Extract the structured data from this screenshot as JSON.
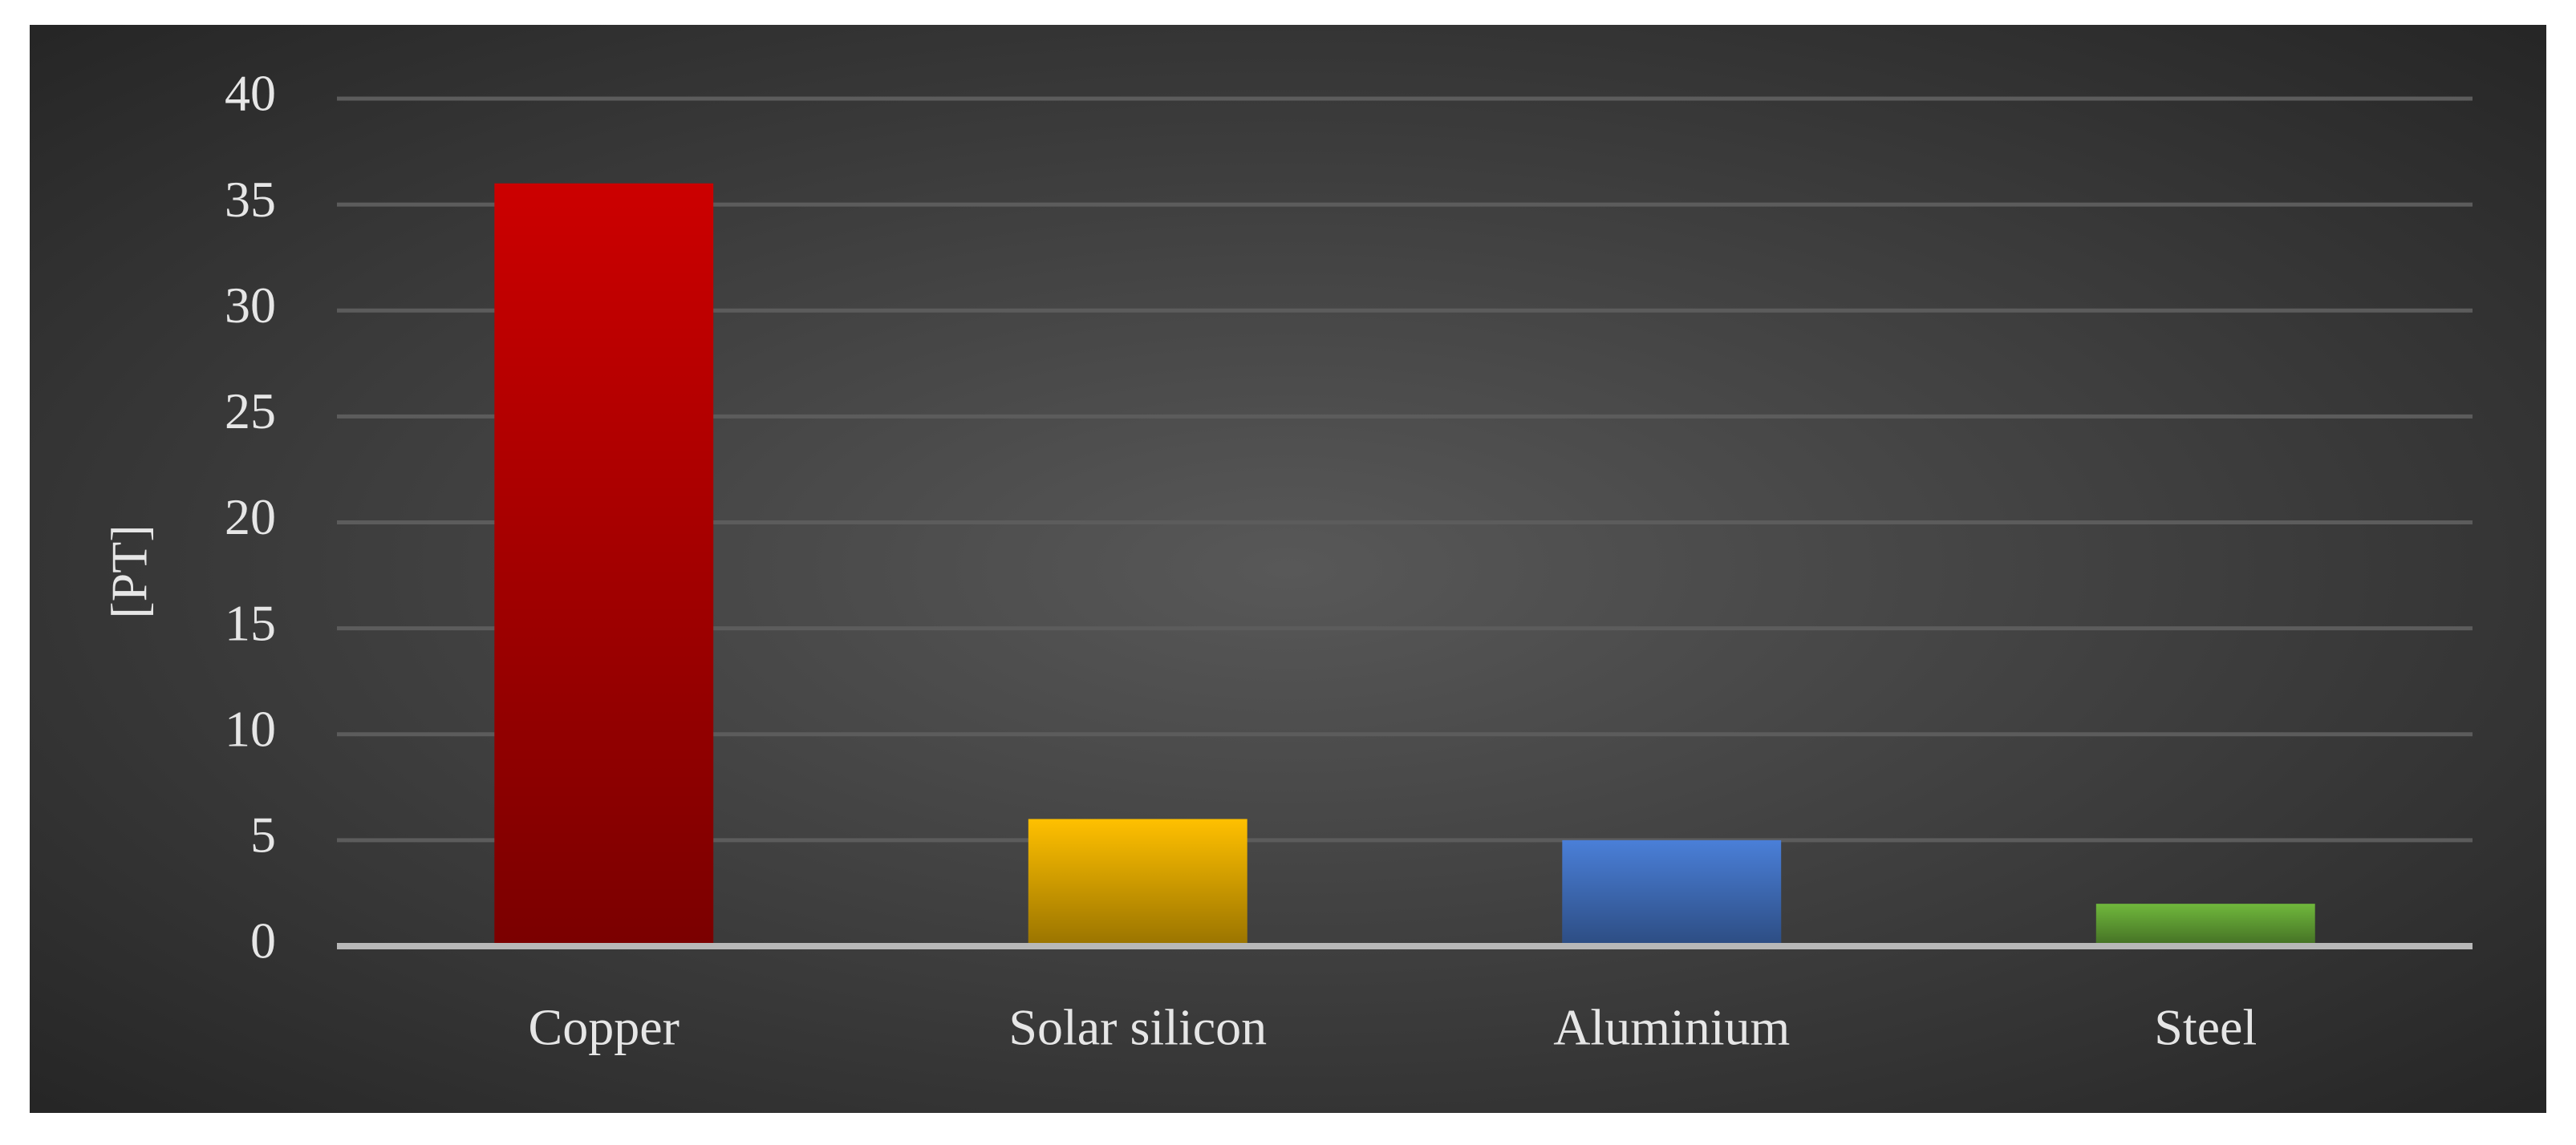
{
  "chart_data": {
    "type": "bar",
    "y_label": "[PT]",
    "categories": [
      "Copper",
      "Solar silicon",
      "Aluminium",
      "Steel"
    ],
    "values": [
      36,
      6,
      5,
      2
    ],
    "colors": [
      "#cc0000",
      "#ffc000",
      "#4a7fd8",
      "#70b83c"
    ],
    "ylim": [
      0,
      40
    ],
    "yticks": [
      0,
      5,
      10,
      15,
      20,
      25,
      30,
      35,
      40
    ],
    "grid": true
  }
}
